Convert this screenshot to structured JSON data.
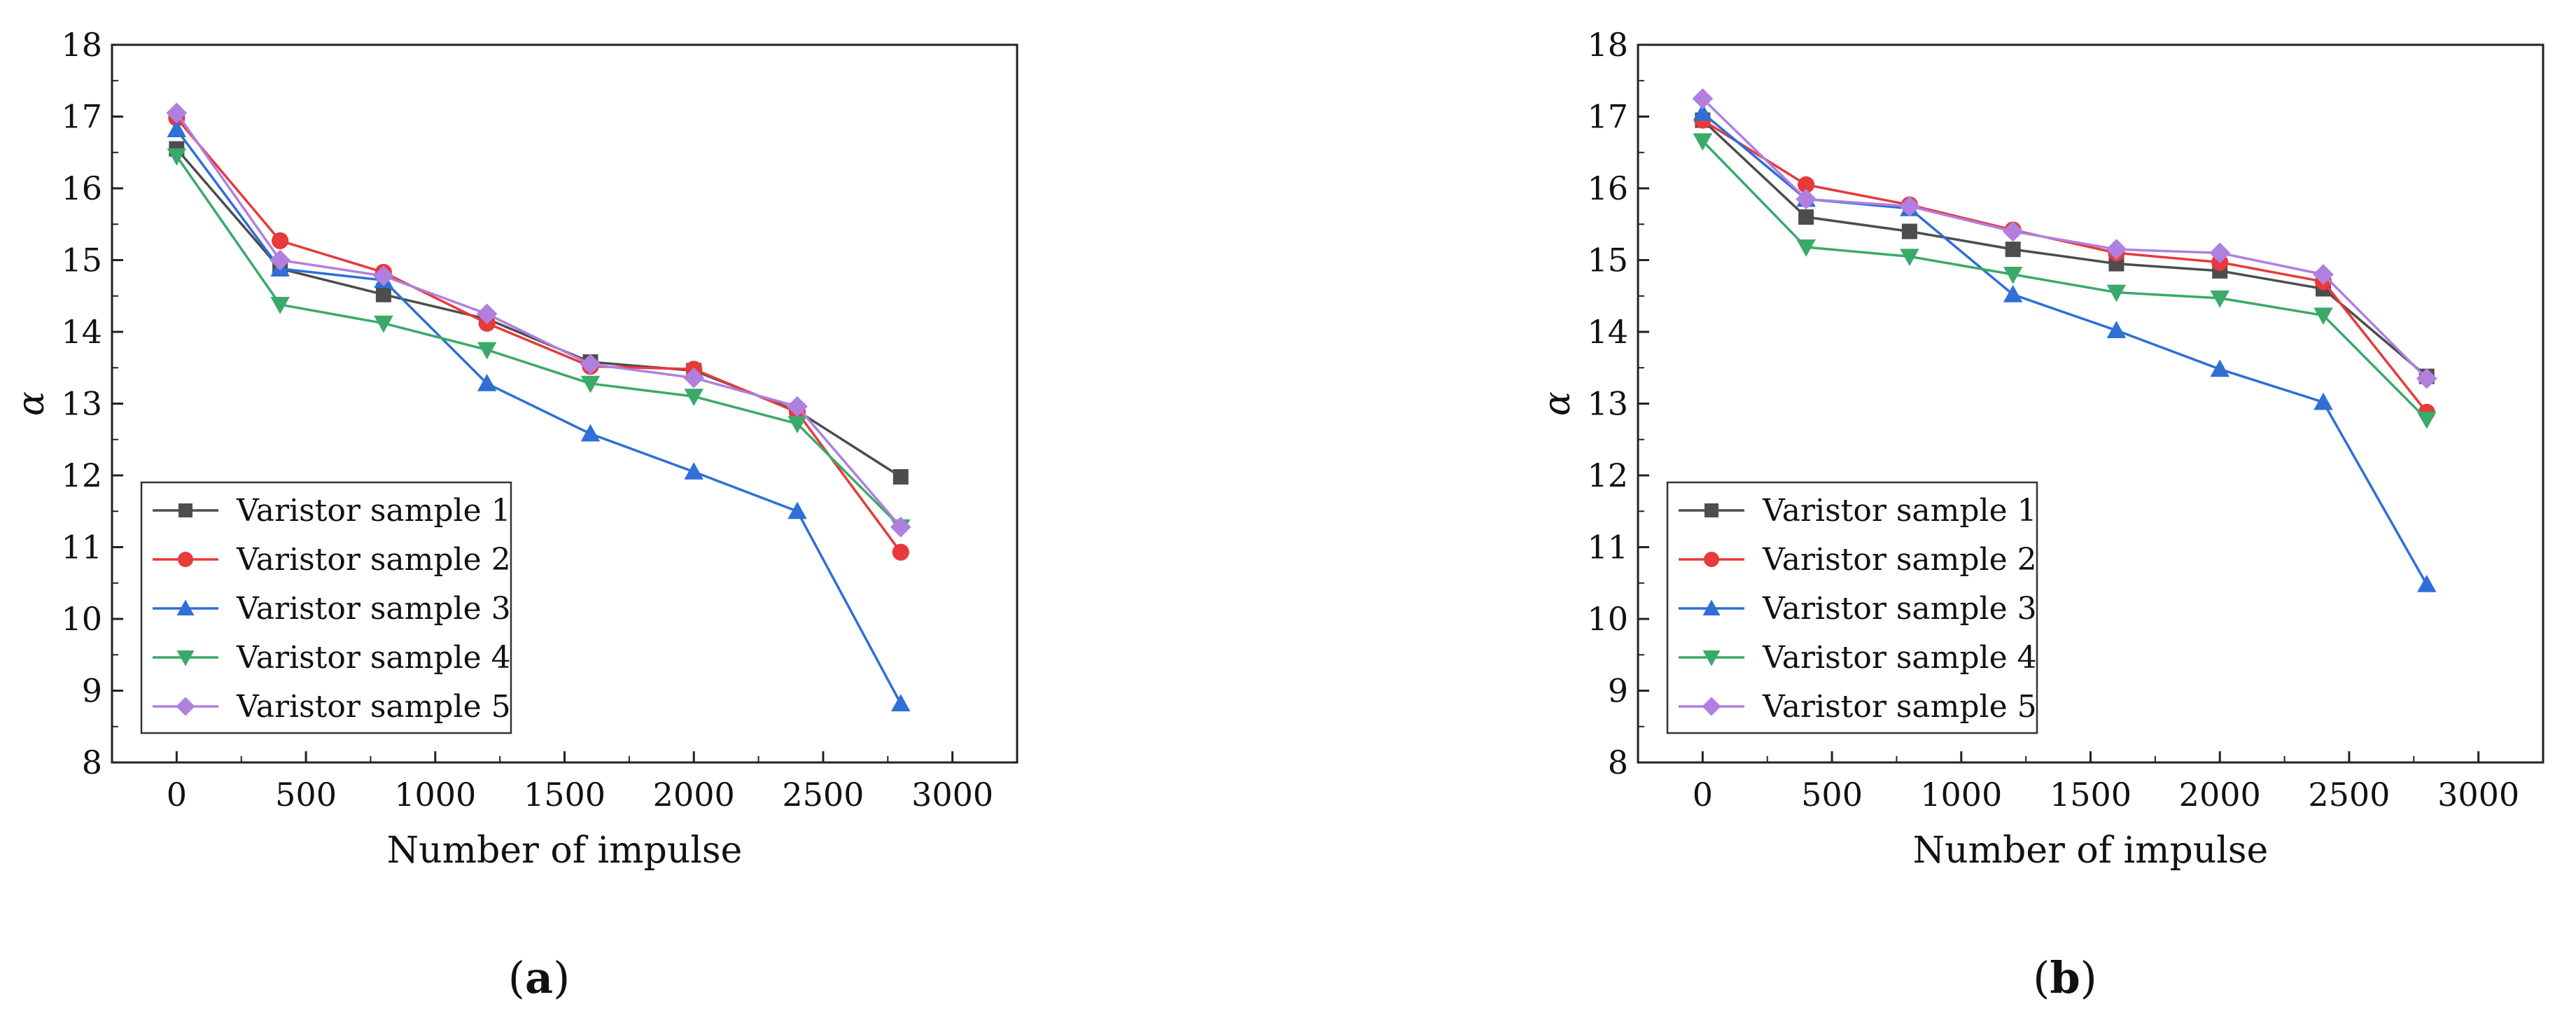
{
  "chart_data": [
    {
      "id": "a",
      "type": "line",
      "caption": {
        "open": "(",
        "letter": "a",
        "close": ")"
      },
      "xlabel": "Number of impulse",
      "ylabel": "α",
      "xlim": [
        -250,
        3250
      ],
      "ylim": [
        8,
        18
      ],
      "xticks": [
        0,
        500,
        1000,
        1500,
        2000,
        2500,
        3000
      ],
      "yticks": [
        8,
        9,
        10,
        11,
        12,
        13,
        14,
        15,
        16,
        17,
        18
      ],
      "legend_position": "lower-left",
      "x": [
        0,
        400,
        800,
        1200,
        1600,
        2000,
        2400,
        2800
      ],
      "series": [
        {
          "name": "Varistor sample 1",
          "color": "#4d4d4d",
          "marker": "square",
          "values": [
            16.55,
            14.88,
            14.52,
            14.18,
            13.58,
            13.46,
            12.9,
            11.98
          ]
        },
        {
          "name": "Varistor sample 2",
          "color": "#e8393b",
          "marker": "circle",
          "values": [
            16.98,
            15.27,
            14.83,
            14.12,
            13.52,
            13.48,
            12.88,
            10.93
          ]
        },
        {
          "name": "Varistor sample 3",
          "color": "#2f6fd6",
          "marker": "triangle-up",
          "values": [
            16.82,
            14.88,
            14.72,
            13.28,
            12.58,
            12.05,
            11.5,
            8.82
          ]
        },
        {
          "name": "Varistor sample 4",
          "color": "#3aaa6a",
          "marker": "triangle-down",
          "values": [
            16.45,
            14.38,
            14.12,
            13.75,
            13.28,
            13.1,
            12.72,
            11.28
          ]
        },
        {
          "name": "Varistor sample 5",
          "color": "#b07fe0",
          "marker": "diamond",
          "values": [
            17.05,
            15.0,
            14.78,
            14.25,
            13.55,
            13.36,
            12.96,
            11.28
          ]
        }
      ]
    },
    {
      "id": "b",
      "type": "line",
      "caption": {
        "open": "(",
        "letter": "b",
        "close": ")"
      },
      "xlabel": "Number of impulse",
      "ylabel": "α",
      "xlim": [
        -250,
        3250
      ],
      "ylim": [
        8,
        18
      ],
      "xticks": [
        0,
        500,
        1000,
        1500,
        2000,
        2500,
        3000
      ],
      "yticks": [
        8,
        9,
        10,
        11,
        12,
        13,
        14,
        15,
        16,
        17,
        18
      ],
      "legend_position": "lower-left",
      "x": [
        0,
        400,
        800,
        1200,
        1600,
        2000,
        2400,
        2800
      ],
      "series": [
        {
          "name": "Varistor sample 1",
          "color": "#4d4d4d",
          "marker": "square",
          "values": [
            16.95,
            15.6,
            15.4,
            15.15,
            14.95,
            14.85,
            14.6,
            13.38
          ]
        },
        {
          "name": "Varistor sample 2",
          "color": "#e8393b",
          "marker": "circle",
          "values": [
            16.95,
            16.05,
            15.77,
            15.42,
            15.1,
            14.97,
            14.7,
            12.88
          ]
        },
        {
          "name": "Varistor sample 3",
          "color": "#2f6fd6",
          "marker": "triangle-up",
          "values": [
            17.05,
            15.85,
            15.72,
            14.52,
            14.02,
            13.48,
            13.02,
            10.48
          ]
        },
        {
          "name": "Varistor sample 4",
          "color": "#3aaa6a",
          "marker": "triangle-down",
          "values": [
            16.66,
            15.18,
            15.05,
            14.8,
            14.55,
            14.47,
            14.23,
            12.78
          ]
        },
        {
          "name": "Varistor sample 5",
          "color": "#b07fe0",
          "marker": "diamond",
          "values": [
            17.25,
            15.85,
            15.75,
            15.4,
            15.15,
            15.1,
            14.8,
            13.35
          ]
        }
      ]
    }
  ]
}
